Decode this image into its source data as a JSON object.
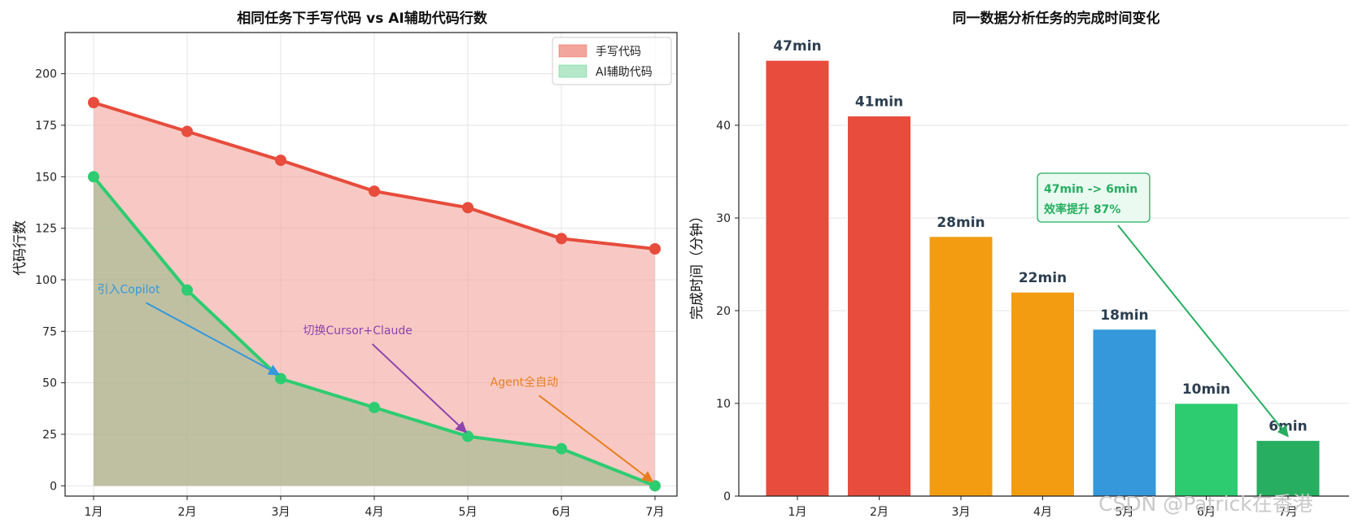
{
  "watermark": "CSDN @Patrick在香港",
  "chart_data": [
    {
      "type": "area",
      "title": "相同任务下手写代码 vs AI辅助代码行数",
      "xlabel": "",
      "ylabel": "代码行数",
      "categories": [
        "1月",
        "2月",
        "3月",
        "4月",
        "5月",
        "6月",
        "7月"
      ],
      "ylim": [
        -5,
        220
      ],
      "yticks": [
        0,
        25,
        50,
        75,
        100,
        125,
        150,
        175,
        200
      ],
      "grid": true,
      "legend_position": "top-right",
      "series": [
        {
          "name": "手写代码",
          "values": [
            186,
            172,
            158,
            143,
            135,
            120,
            115
          ],
          "color": "#e74c3c",
          "fill": "#f3a59d"
        },
        {
          "name": "AI辅助代码",
          "values": [
            150,
            95,
            52,
            38,
            24,
            18,
            0
          ],
          "color": "#2ecc71",
          "fill": "#90b886"
        }
      ],
      "annotations": [
        {
          "text": "引入Copilot",
          "target": {
            "x": 3,
            "y": 52
          },
          "label_at": {
            "x": 1.3,
            "y": 92
          },
          "color": "#3498db"
        },
        {
          "text": "切换Cursor+Claude",
          "target": {
            "x": 5,
            "y": 24
          },
          "label_at": {
            "x": 3.5,
            "y": 72
          },
          "color": "#8e44ad"
        },
        {
          "text": "Agent全自动",
          "target": {
            "x": 7,
            "y": 0
          },
          "label_at": {
            "x": 5.5,
            "y": 47
          },
          "color": "#e67e22"
        }
      ]
    },
    {
      "type": "bar",
      "title": "同一数据分析任务的完成时间变化",
      "xlabel": "",
      "ylabel": "完成时间（分钟）",
      "categories": [
        "1月",
        "2月",
        "3月",
        "4月",
        "5月",
        "6月",
        "7月"
      ],
      "values": [
        47,
        41,
        28,
        22,
        18,
        10,
        6
      ],
      "value_labels": [
        "47min",
        "41min",
        "28min",
        "22min",
        "18min",
        "10min",
        "6min"
      ],
      "colors": [
        "#e74c3c",
        "#e74c3c",
        "#f39c12",
        "#f39c12",
        "#3498db",
        "#2ecc71",
        "#27ae60"
      ],
      "ylim": [
        0,
        50
      ],
      "yticks": [
        0,
        10,
        20,
        30,
        40
      ],
      "grid": true,
      "annotation": {
        "lines": [
          "47min -> 6min",
          "效率提升 87%"
        ],
        "color": "#27ae60",
        "target": {
          "x": 7,
          "y": 6
        },
        "label_at": {
          "x": 3.9,
          "y": 31
        }
      }
    }
  ]
}
